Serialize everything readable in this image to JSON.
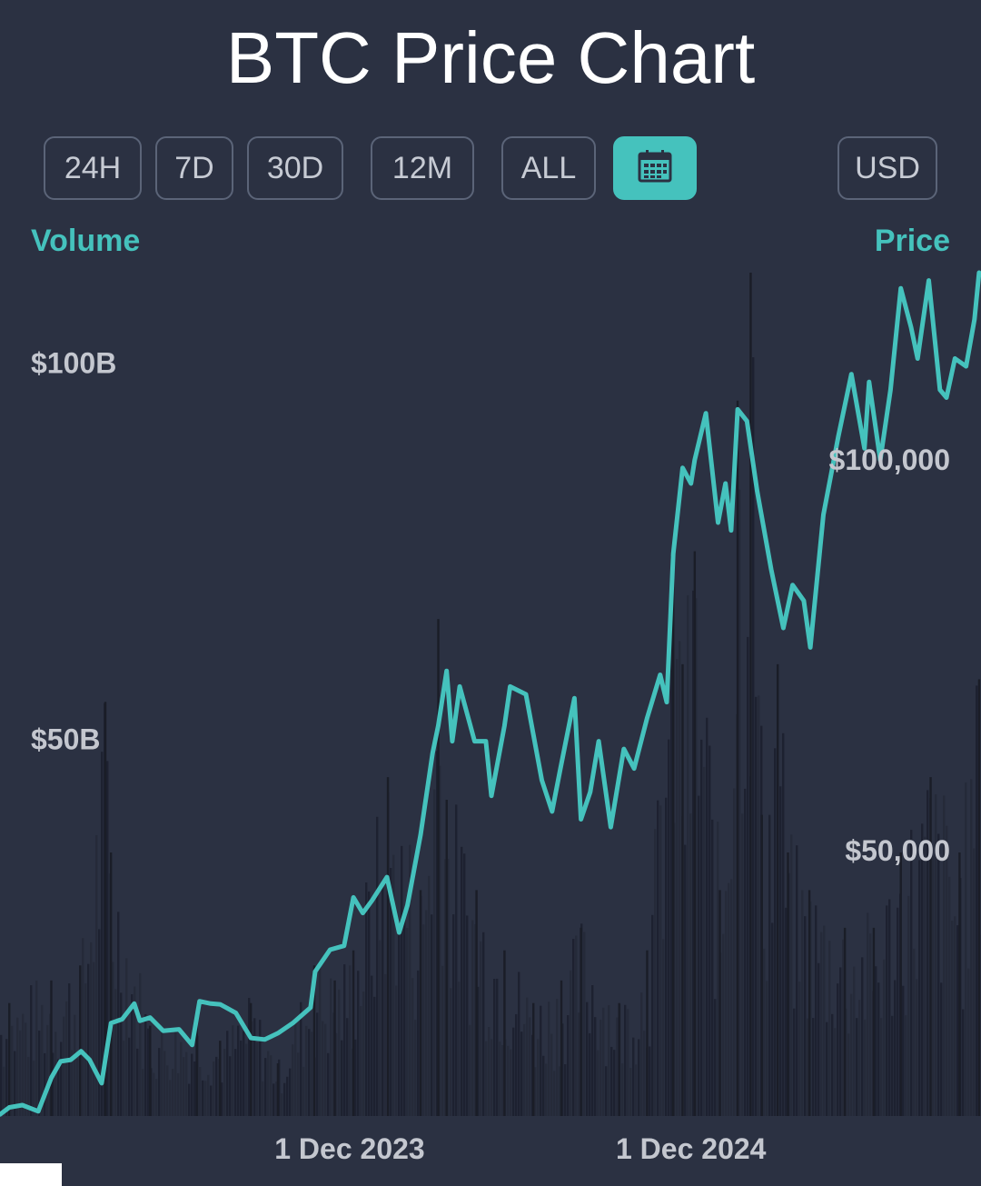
{
  "header": {
    "title": "BTC Price Chart"
  },
  "range_buttons": [
    "24H",
    "7D",
    "30D",
    "12M",
    "ALL"
  ],
  "currency_button": "USD",
  "icons": {
    "calendar": "calendar-icon"
  },
  "colors": {
    "accent": "#45c2bd",
    "background": "#2b3142",
    "volume": "#1c1f2a",
    "label": "#c4c7cf"
  },
  "chart_data": {
    "type": "line",
    "title": "BTC Price Chart",
    "left_axis_label": "Volume",
    "right_axis_label": "Price",
    "left_ticks": [
      {
        "label": "$100B",
        "value": 100
      },
      {
        "label": "$50B",
        "value": 50
      }
    ],
    "right_ticks": [
      {
        "label": "$100,000",
        "value": 100000
      },
      {
        "label": "$50,000",
        "value": 50000
      }
    ],
    "x_ticks": [
      {
        "label": "1 Dec 2023",
        "date": "2023-12-01"
      },
      {
        "label": "1 Dec 2024",
        "date": "2024-12-01"
      }
    ],
    "x_range": [
      "2022-11-21",
      "2025-10-08"
    ],
    "y_price_range": [
      16000,
      124000
    ],
    "y_volume_range_billions": [
      0,
      112
    ],
    "series": [
      {
        "name": "Price",
        "unit": "USD",
        "points": [
          [
            "2022-11-21",
            16200
          ],
          [
            "2022-12-01",
            17100
          ],
          [
            "2022-12-15",
            17400
          ],
          [
            "2023-01-01",
            16600
          ],
          [
            "2023-01-15",
            20900
          ],
          [
            "2023-01-25",
            23000
          ],
          [
            "2023-02-05",
            23200
          ],
          [
            "2023-02-16",
            24300
          ],
          [
            "2023-02-25",
            23200
          ],
          [
            "2023-03-10",
            20200
          ],
          [
            "2023-03-20",
            27900
          ],
          [
            "2023-04-01",
            28400
          ],
          [
            "2023-04-14",
            30400
          ],
          [
            "2023-04-20",
            28200
          ],
          [
            "2023-05-01",
            28600
          ],
          [
            "2023-05-15",
            26900
          ],
          [
            "2023-06-01",
            27100
          ],
          [
            "2023-06-15",
            25100
          ],
          [
            "2023-06-23",
            30700
          ],
          [
            "2023-07-05",
            30400
          ],
          [
            "2023-07-15",
            30300
          ],
          [
            "2023-08-01",
            29200
          ],
          [
            "2023-08-17",
            26000
          ],
          [
            "2023-09-01",
            25800
          ],
          [
            "2023-09-15",
            26600
          ],
          [
            "2023-10-01",
            27900
          ],
          [
            "2023-10-20",
            29900
          ],
          [
            "2023-10-25",
            34500
          ],
          [
            "2023-11-10",
            37300
          ],
          [
            "2023-11-25",
            37800
          ],
          [
            "2023-12-05",
            44000
          ],
          [
            "2023-12-15",
            42000
          ],
          [
            "2023-12-25",
            43600
          ],
          [
            "2024-01-10",
            46600
          ],
          [
            "2024-01-23",
            39500
          ],
          [
            "2024-02-01",
            43000
          ],
          [
            "2024-02-15",
            52000
          ],
          [
            "2024-02-28",
            62500
          ],
          [
            "2024-03-05",
            66000
          ],
          [
            "2024-03-14",
            73000
          ],
          [
            "2024-03-20",
            64000
          ],
          [
            "2024-03-28",
            71000
          ],
          [
            "2024-04-13",
            64000
          ],
          [
            "2024-04-25",
            64000
          ],
          [
            "2024-05-01",
            57000
          ],
          [
            "2024-05-15",
            66000
          ],
          [
            "2024-05-21",
            71000
          ],
          [
            "2024-06-07",
            70000
          ],
          [
            "2024-06-24",
            59000
          ],
          [
            "2024-07-05",
            55000
          ],
          [
            "2024-07-14",
            60500
          ],
          [
            "2024-07-29",
            69500
          ],
          [
            "2024-08-05",
            54000
          ],
          [
            "2024-08-15",
            57500
          ],
          [
            "2024-08-24",
            64000
          ],
          [
            "2024-09-06",
            53000
          ],
          [
            "2024-09-20",
            63000
          ],
          [
            "2024-10-01",
            60500
          ],
          [
            "2024-10-15",
            67000
          ],
          [
            "2024-10-29",
            72500
          ],
          [
            "2024-11-05",
            69000
          ],
          [
            "2024-11-12",
            88000
          ],
          [
            "2024-11-22",
            99000
          ],
          [
            "2024-12-01",
            97000
          ],
          [
            "2024-12-05",
            100000
          ],
          [
            "2024-12-17",
            106000
          ],
          [
            "2024-12-30",
            92000
          ],
          [
            "2025-01-07",
            97000
          ],
          [
            "2025-01-13",
            91000
          ],
          [
            "2025-01-20",
            106500
          ],
          [
            "2025-01-30",
            105000
          ],
          [
            "2025-02-10",
            96000
          ],
          [
            "2025-02-25",
            86000
          ],
          [
            "2025-03-10",
            78500
          ],
          [
            "2025-03-20",
            84000
          ],
          [
            "2025-04-01",
            82000
          ],
          [
            "2025-04-08",
            76000
          ],
          [
            "2025-04-22",
            93000
          ],
          [
            "2025-05-08",
            103000
          ],
          [
            "2025-05-22",
            111000
          ],
          [
            "2025-06-05",
            101500
          ],
          [
            "2025-06-10",
            110000
          ],
          [
            "2025-06-22",
            100000
          ],
          [
            "2025-07-03",
            109000
          ],
          [
            "2025-07-14",
            122000
          ],
          [
            "2025-07-25",
            117000
          ],
          [
            "2025-08-01",
            113000
          ],
          [
            "2025-08-13",
            123000
          ],
          [
            "2025-08-25",
            109000
          ],
          [
            "2025-09-01",
            108000
          ],
          [
            "2025-09-10",
            113000
          ],
          [
            "2025-09-22",
            112000
          ],
          [
            "2025-10-01",
            118000
          ],
          [
            "2025-10-06",
            124000
          ]
        ]
      },
      {
        "name": "Volume",
        "unit": "USD billions",
        "points": [
          [
            "2022-12-01",
            15
          ],
          [
            "2023-01-15",
            18
          ],
          [
            "2023-02-15",
            20
          ],
          [
            "2023-03-14",
            55
          ],
          [
            "2023-03-20",
            35
          ],
          [
            "2023-05-01",
            12
          ],
          [
            "2023-06-20",
            12
          ],
          [
            "2023-07-15",
            10
          ],
          [
            "2023-08-17",
            15
          ],
          [
            "2023-09-15",
            7
          ],
          [
            "2023-10-24",
            20
          ],
          [
            "2023-11-15",
            18
          ],
          [
            "2023-12-05",
            22
          ],
          [
            "2024-01-11",
            45
          ],
          [
            "2024-02-15",
            30
          ],
          [
            "2024-03-05",
            66
          ],
          [
            "2024-03-14",
            42
          ],
          [
            "2024-04-15",
            30
          ],
          [
            "2024-05-15",
            22
          ],
          [
            "2024-06-15",
            15
          ],
          [
            "2024-07-15",
            18
          ],
          [
            "2024-08-05",
            25
          ],
          [
            "2024-09-15",
            15
          ],
          [
            "2024-10-15",
            22
          ],
          [
            "2024-11-12",
            75
          ],
          [
            "2024-11-22",
            60
          ],
          [
            "2024-12-05",
            75
          ],
          [
            "2025-01-01",
            30
          ],
          [
            "2025-01-20",
            95
          ],
          [
            "2025-02-03",
            112
          ],
          [
            "2025-02-15",
            40
          ],
          [
            "2025-03-04",
            60
          ],
          [
            "2025-03-15",
            35
          ],
          [
            "2025-04-07",
            30
          ],
          [
            "2025-05-15",
            25
          ],
          [
            "2025-06-15",
            25
          ],
          [
            "2025-07-14",
            35
          ],
          [
            "2025-08-15",
            45
          ],
          [
            "2025-09-15",
            35
          ],
          [
            "2025-10-06",
            58
          ]
        ]
      }
    ]
  }
}
